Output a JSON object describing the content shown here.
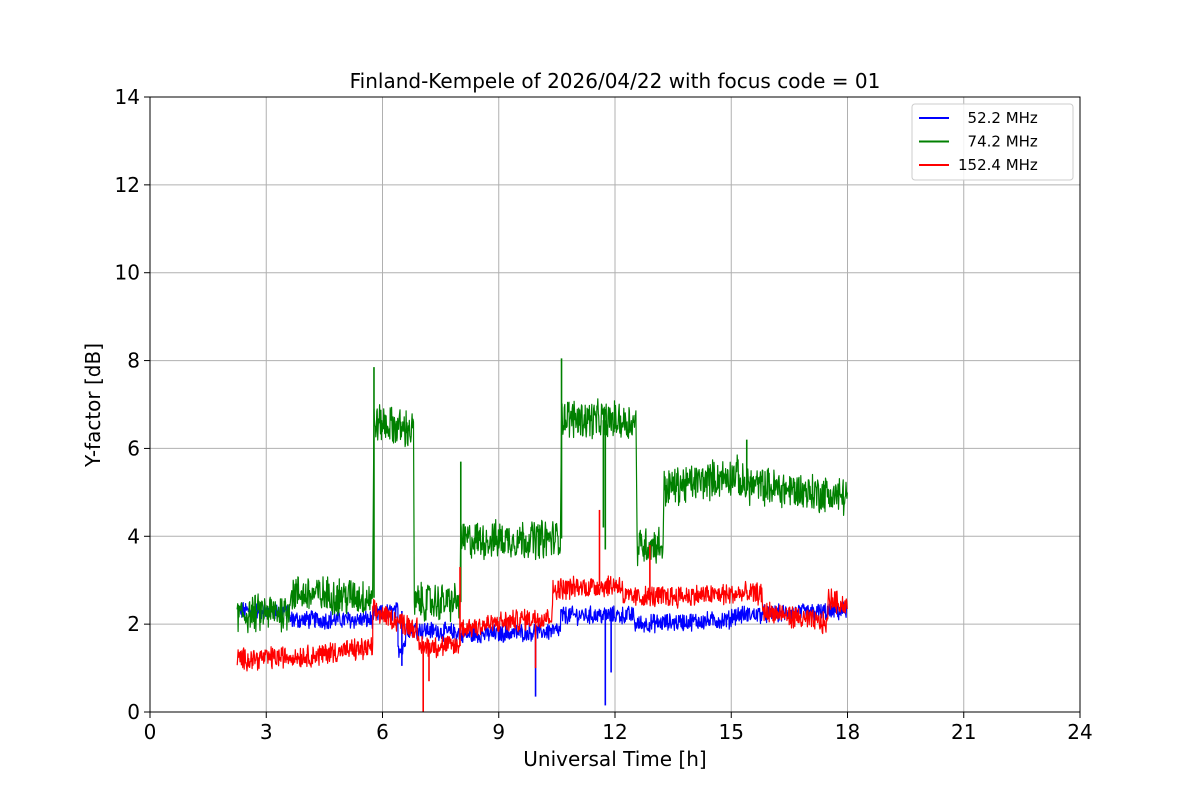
{
  "chart_data": {
    "type": "line",
    "title": "Finland-Kempele of 2026/04/22 with focus code = 01",
    "xlabel": "Universal Time [h]",
    "ylabel": "Y-factor [dB]",
    "xlim": [
      0,
      24
    ],
    "ylim": [
      0,
      14
    ],
    "xticks": [
      0,
      3,
      6,
      9,
      12,
      15,
      18,
      21,
      24
    ],
    "yticks": [
      0,
      2,
      4,
      6,
      8,
      10,
      12,
      14
    ],
    "grid": true,
    "legend_position": "top-right",
    "series": [
      {
        "name": "  52.2 MHz",
        "color": "#0000ff",
        "noise": 0.18,
        "segments": [
          {
            "x": [
              2.25,
              3.6
            ],
            "y": [
              2.3,
              2.3
            ]
          },
          {
            "x": [
              3.6,
              5.75
            ],
            "y": [
              2.1,
              2.1
            ]
          },
          {
            "x": [
              5.75,
              6.4
            ],
            "y": [
              2.2,
              2.3
            ]
          },
          {
            "x": [
              6.4,
              6.6
            ],
            "y": [
              1.4,
              1.6
            ]
          },
          {
            "x": [
              6.6,
              8.0
            ],
            "y": [
              1.9,
              1.8
            ]
          },
          {
            "x": [
              8.0,
              10.6
            ],
            "y": [
              1.75,
              1.85
            ]
          },
          {
            "x": [
              10.6,
              12.5
            ],
            "y": [
              2.2,
              2.2
            ]
          },
          {
            "x": [
              12.5,
              15.0
            ],
            "y": [
              2.0,
              2.1
            ]
          },
          {
            "x": [
              15.0,
              18.0
            ],
            "y": [
              2.2,
              2.3
            ]
          }
        ],
        "spikes": [
          {
            "x": 9.95,
            "y": 0.35
          },
          {
            "x": 11.75,
            "y": 0.15
          },
          {
            "x": 11.9,
            "y": 0.9
          },
          {
            "x": 6.5,
            "y": 1.05
          }
        ]
      },
      {
        "name": "  74.2 MHz",
        "color": "#008000",
        "noise": 0.38,
        "segments": [
          {
            "x": [
              2.25,
              3.6
            ],
            "y": [
              2.2,
              2.3
            ]
          },
          {
            "x": [
              3.6,
              5.75
            ],
            "y": [
              2.7,
              2.6
            ]
          },
          {
            "x": [
              5.78,
              6.8
            ],
            "y": [
              6.6,
              6.4
            ]
          },
          {
            "x": [
              6.82,
              8.0
            ],
            "y": [
              2.5,
              2.5
            ]
          },
          {
            "x": [
              8.02,
              10.6
            ],
            "y": [
              3.9,
              3.95
            ]
          },
          {
            "x": [
              10.62,
              12.55
            ],
            "y": [
              6.7,
              6.6
            ]
          },
          {
            "x": [
              12.57,
              13.25
            ],
            "y": [
              3.8,
              3.8
            ]
          },
          {
            "x": [
              13.27,
              15.2
            ],
            "y": [
              5.1,
              5.4
            ]
          },
          {
            "x": [
              15.2,
              18.0
            ],
            "y": [
              5.2,
              4.9
            ]
          }
        ],
        "spikes": [
          {
            "x": 5.78,
            "y": 7.85
          },
          {
            "x": 8.02,
            "y": 5.7
          },
          {
            "x": 10.62,
            "y": 8.05
          },
          {
            "x": 15.4,
            "y": 6.2
          },
          {
            "x": 11.7,
            "y": 4.2
          },
          {
            "x": 11.75,
            "y": 3.7
          }
        ]
      },
      {
        "name": "152.4 MHz",
        "color": "#ff0000",
        "noise": 0.22,
        "segments": [
          {
            "x": [
              2.25,
              4.5
            ],
            "y": [
              1.2,
              1.3
            ]
          },
          {
            "x": [
              4.5,
              5.75
            ],
            "y": [
              1.35,
              1.45
            ]
          },
          {
            "x": [
              5.75,
              6.9
            ],
            "y": [
              2.3,
              1.9
            ]
          },
          {
            "x": [
              6.9,
              8.0
            ],
            "y": [
              1.5,
              1.5
            ]
          },
          {
            "x": [
              8.0,
              10.4
            ],
            "y": [
              1.9,
              2.2
            ]
          },
          {
            "x": [
              10.4,
              12.2
            ],
            "y": [
              2.8,
              2.9
            ]
          },
          {
            "x": [
              12.2,
              15.8
            ],
            "y": [
              2.6,
              2.7
            ]
          },
          {
            "x": [
              15.8,
              17.5
            ],
            "y": [
              2.3,
              2.0
            ]
          },
          {
            "x": [
              17.5,
              18.0
            ],
            "y": [
              2.6,
              2.4
            ]
          }
        ],
        "spikes": [
          {
            "x": 7.05,
            "y": 0.0
          },
          {
            "x": 7.2,
            "y": 0.7
          },
          {
            "x": 11.6,
            "y": 4.6
          },
          {
            "x": 9.95,
            "y": 1.0
          },
          {
            "x": 8.0,
            "y": 3.3
          },
          {
            "x": 12.9,
            "y": 3.8
          }
        ]
      }
    ]
  }
}
